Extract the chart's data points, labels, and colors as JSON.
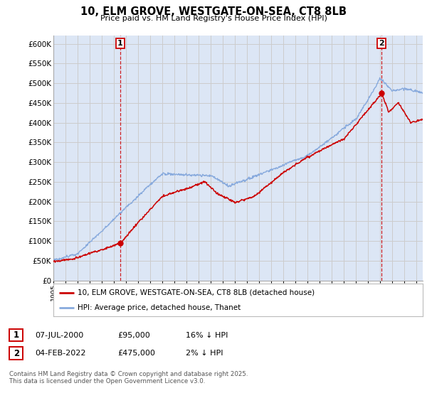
{
  "title": "10, ELM GROVE, WESTGATE-ON-SEA, CT8 8LB",
  "subtitle": "Price paid vs. HM Land Registry's House Price Index (HPI)",
  "ylim": [
    0,
    620000
  ],
  "yticks": [
    0,
    50000,
    100000,
    150000,
    200000,
    250000,
    300000,
    350000,
    400000,
    450000,
    500000,
    550000,
    600000
  ],
  "ytick_labels": [
    "£0",
    "£50K",
    "£100K",
    "£150K",
    "£200K",
    "£250K",
    "£300K",
    "£350K",
    "£400K",
    "£450K",
    "£500K",
    "£550K",
    "£600K"
  ],
  "xlim_start": 1995.0,
  "xlim_end": 2025.5,
  "transaction1_date": 2000.52,
  "transaction1_price": 95000,
  "transaction1_label": "1",
  "transaction2_date": 2022.09,
  "transaction2_price": 475000,
  "transaction2_label": "2",
  "line_color_property": "#cc0000",
  "line_color_hpi": "#88aadd",
  "vline_color": "#cc0000",
  "grid_color": "#cccccc",
  "background_color": "#e8eef8",
  "plot_bg_color": "#dce6f5",
  "legend_label_property": "10, ELM GROVE, WESTGATE-ON-SEA, CT8 8LB (detached house)",
  "legend_label_hpi": "HPI: Average price, detached house, Thanet",
  "annotation_footnote": "Contains HM Land Registry data © Crown copyright and database right 2025.\nThis data is licensed under the Open Government Licence v3.0.",
  "table_row1": [
    "1",
    "07-JUL-2000",
    "£95,000",
    "16% ↓ HPI"
  ],
  "table_row2": [
    "2",
    "04-FEB-2022",
    "£475,000",
    "2% ↓ HPI"
  ]
}
